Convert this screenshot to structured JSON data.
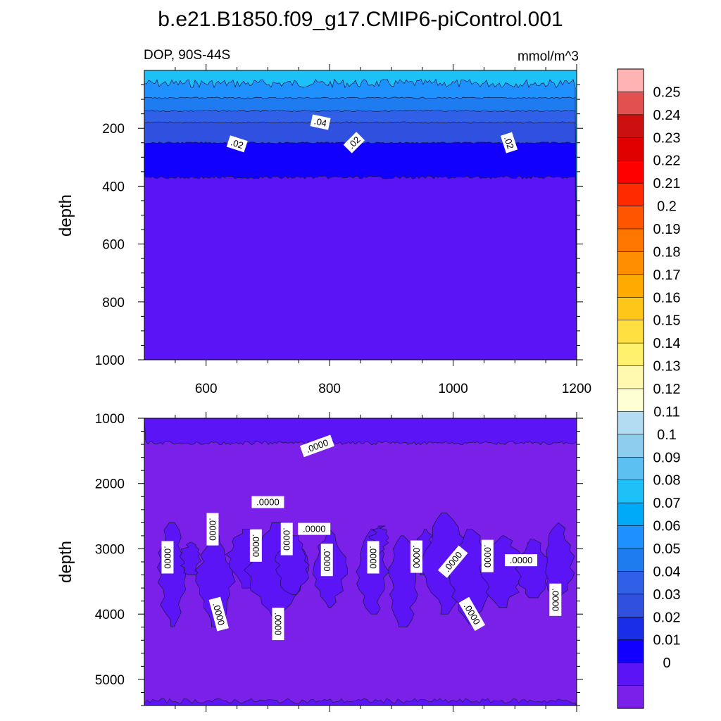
{
  "title": "b.e21.B1850.f09_g17.CMIP6-piControl.001",
  "chart_data": [
    {
      "type": "heatmap",
      "panel": "top",
      "left_string": "DOP, 90S-44S",
      "right_string": "mmol/m^3",
      "ylabel": "depth",
      "xlabel": "",
      "xlim": [
        500,
        1200
      ],
      "ylim": [
        1000,
        0
      ],
      "xticks": [
        "600",
        "800",
        "1000",
        "1200"
      ],
      "yticks": [
        "200",
        "400",
        "600",
        "800",
        "1000"
      ],
      "ytick_values": [
        200,
        400,
        600,
        800,
        1000
      ],
      "xtick_values": [
        600,
        800,
        1000,
        1200
      ],
      "bands": [
        {
          "top": 0,
          "bottom": 45,
          "level": 0.08
        },
        {
          "top": 45,
          "bottom": 95,
          "level": 0.06
        },
        {
          "top": 95,
          "bottom": 140,
          "level": 0.05
        },
        {
          "top": 140,
          "bottom": 180,
          "level": 0.04
        },
        {
          "top": 180,
          "bottom": 250,
          "level": 0.03
        },
        {
          "top": 250,
          "bottom": 370,
          "level": 0.01
        },
        {
          "top": 370,
          "bottom": 1000,
          "level": 0.0
        }
      ],
      "contour_labels": [
        {
          "text": ".04",
          "x": 785,
          "y": 180,
          "angle": 12
        },
        {
          "text": ".02",
          "x": 650,
          "y": 255,
          "angle": 18
        },
        {
          "text": ".02",
          "x": 840,
          "y": 250,
          "angle": -45
        },
        {
          "text": ".02",
          "x": 1090,
          "y": 250,
          "angle": 72
        }
      ]
    },
    {
      "type": "heatmap",
      "panel": "bottom",
      "ylabel": "depth",
      "xlim": [
        500,
        1200
      ],
      "ylim": [
        5400,
        1000
      ],
      "yticks": [
        "1000",
        "2000",
        "3000",
        "4000",
        "5000"
      ],
      "ytick_values": [
        1000,
        2000,
        3000,
        4000,
        5000
      ],
      "bands": [
        {
          "top": 1000,
          "bottom": 1380,
          "level": 0.0
        },
        {
          "top": 1380,
          "bottom": 5400,
          "level": "below 0"
        }
      ],
      "contour_labels": [
        {
          "text": ".0000",
          "x": 780,
          "y": 1430,
          "angle": -20
        },
        {
          "text": ".0000",
          "x": 700,
          "y": 2290,
          "angle": 0
        },
        {
          "text": ".0000",
          "x": 610,
          "y": 2700,
          "angle": 90
        },
        {
          "text": ".0000",
          "x": 775,
          "y": 2700,
          "angle": 0
        },
        {
          "text": ".0000",
          "x": 680,
          "y": 2950,
          "angle": 90
        },
        {
          "text": ".0000",
          "x": 730,
          "y": 2850,
          "angle": 90
        },
        {
          "text": ".0000",
          "x": 537,
          "y": 3130,
          "angle": 90
        },
        {
          "text": ".0000",
          "x": 795,
          "y": 3170,
          "angle": 90
        },
        {
          "text": ".0000",
          "x": 870,
          "y": 3130,
          "angle": 90
        },
        {
          "text": ".0000",
          "x": 940,
          "y": 3120,
          "angle": 90
        },
        {
          "text": ".0000",
          "x": 1000,
          "y": 3200,
          "angle": -50
        },
        {
          "text": ".0000",
          "x": 1055,
          "y": 3110,
          "angle": 90
        },
        {
          "text": ".0000",
          "x": 1110,
          "y": 3180,
          "angle": 0
        },
        {
          "text": ".0000",
          "x": 620,
          "y": 4000,
          "angle": 75
        },
        {
          "text": ".0000",
          "x": 716,
          "y": 4150,
          "angle": 90
        },
        {
          "text": ".0000",
          "x": 1030,
          "y": 4000,
          "angle": 60
        },
        {
          "text": ".0000",
          "x": 1165,
          "y": 3780,
          "angle": 90
        }
      ]
    }
  ],
  "colorbar": {
    "labels": [
      "0.25",
      "0.24",
      "0.23",
      "0.22",
      "0.21",
      "0.2",
      "0.19",
      "0.18",
      "0.17",
      "0.16",
      "0.15",
      "0.14",
      "0.13",
      "0.12",
      "0.11",
      "0.1",
      "0.09",
      "0.08",
      "0.07",
      "0.06",
      "0.05",
      "0.04",
      "0.03",
      "0.02",
      "0.01",
      "0"
    ],
    "colors": [
      "#ffb3b3",
      "#e25050",
      "#cc1010",
      "#e00000",
      "#ff0000",
      "#ff2a00",
      "#ff5500",
      "#ff7700",
      "#ff8e00",
      "#ffaa00",
      "#ffc61a",
      "#ffe040",
      "#fff16e",
      "#fff9b0",
      "#ffffd4",
      "#b2dcf2",
      "#8fcdee",
      "#5cc0f0",
      "#1ec0f8",
      "#00aaf8",
      "#1e90ff",
      "#1e7cf0",
      "#3060e8",
      "#3050e0",
      "#1a2ee8",
      "#1200ff",
      "#5a14f5",
      "#7b20e8"
    ]
  }
}
